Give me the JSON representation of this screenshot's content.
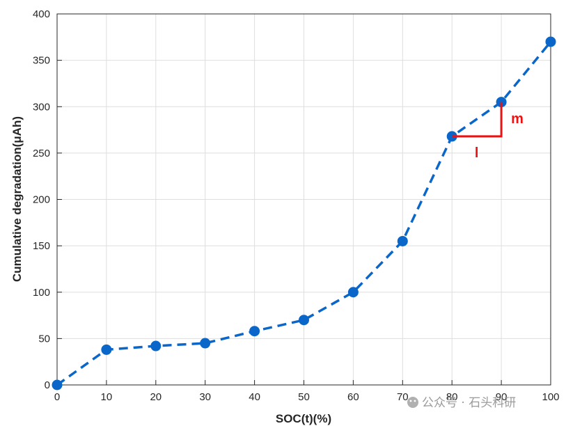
{
  "chart_data": {
    "type": "line",
    "title": "",
    "xlabel": "SOC(t)(%)",
    "ylabel": "Cumulative degradation(μAh)",
    "xlim": [
      0,
      100
    ],
    "ylim": [
      0,
      400
    ],
    "xticks": [
      0,
      10,
      20,
      30,
      40,
      50,
      60,
      70,
      80,
      90,
      100
    ],
    "yticks": [
      0,
      50,
      100,
      150,
      200,
      250,
      300,
      350,
      400
    ],
    "grid": true,
    "line_style": "dashed",
    "marker": "filled-circle",
    "series": [
      {
        "x": [
          0,
          10,
          20,
          30,
          40,
          50,
          60,
          70,
          80,
          90,
          100
        ],
        "y": [
          0,
          38,
          42,
          45,
          58,
          70,
          100,
          155,
          268,
          305,
          370
        ],
        "color": "#0a66c8"
      }
    ],
    "annotations": [
      {
        "type": "slope-triangle",
        "from": [
          80,
          268
        ],
        "corner": [
          90,
          268
        ],
        "to": [
          90,
          305
        ],
        "color": "#ee1111",
        "run_label": "l",
        "rise_label": "m"
      }
    ]
  },
  "watermark": {
    "text": "公众号 · 石头科研"
  }
}
